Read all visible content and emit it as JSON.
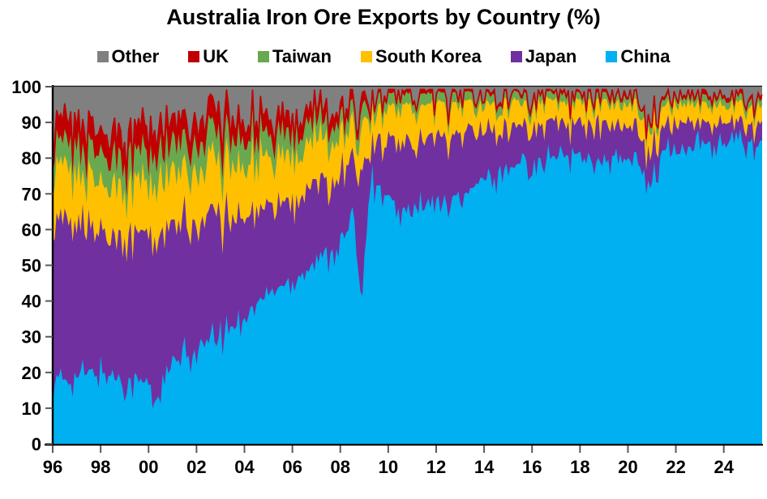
{
  "title": "Australia Iron Ore Exports by Country (%)",
  "chart_data": {
    "type": "area",
    "stacked": true,
    "title": "Australia Iron Ore Exports by Country (%)",
    "xlabel": "",
    "ylabel": "",
    "ylim": [
      0,
      100
    ],
    "xlim": [
      1996,
      2025.6
    ],
    "grid": false,
    "legend_position": "top",
    "legend_order": [
      "Other",
      "UK",
      "Taiwan",
      "South Korea",
      "Japan",
      "China"
    ],
    "y_ticks": [
      0,
      10,
      20,
      30,
      40,
      50,
      60,
      70,
      80,
      90,
      100
    ],
    "x_tick_labels": [
      "96",
      "98",
      "00",
      "02",
      "04",
      "06",
      "08",
      "10",
      "12",
      "14",
      "16",
      "18",
      "20",
      "22",
      "24"
    ],
    "x_tick_years": [
      1996,
      1998,
      2000,
      2002,
      2004,
      2006,
      2008,
      2010,
      2012,
      2014,
      2016,
      2018,
      2020,
      2022,
      2024
    ],
    "x": [
      1996,
      1997,
      1998,
      1999,
      2000,
      2000.2,
      2001,
      2002,
      2003,
      2004,
      2005,
      2006,
      2007,
      2008,
      2008.6,
      2008.9,
      2009.2,
      2009.7,
      2010.5,
      2011,
      2012,
      2013,
      2014,
      2015,
      2016,
      2017,
      2018,
      2019,
      2020,
      2020.6,
      2020.9,
      2021.2,
      2021.4,
      2022,
      2023,
      2024,
      2025,
      2025.6
    ],
    "series": [
      {
        "name": "China",
        "color": "#00B0F0",
        "values": [
          17,
          19,
          20,
          18,
          17,
          11,
          22,
          26,
          30,
          36,
          42,
          46,
          51,
          56,
          63,
          39,
          75,
          71,
          65,
          66,
          68,
          70,
          74,
          78,
          80,
          81,
          81,
          80,
          79,
          78,
          73,
          74,
          82,
          82,
          84,
          84,
          85,
          84
        ]
      },
      {
        "name": "Japan",
        "color": "#7030A0",
        "values": [
          44,
          42,
          40,
          41,
          42,
          47,
          38,
          35,
          33,
          28,
          25,
          23,
          21,
          20,
          17,
          38,
          11,
          15,
          20,
          19,
          18,
          17.5,
          14.5,
          11.5,
          10.5,
          9.8,
          9.5,
          9.5,
          9.2,
          9,
          8,
          8,
          7.5,
          7.5,
          6,
          5.5,
          5,
          5.5
        ]
      },
      {
        "name": "South Korea",
        "color": "#FFC000",
        "values": [
          15,
          14,
          13.5,
          14.5,
          15,
          16,
          15,
          15.5,
          15,
          15,
          14,
          13,
          12,
          10.5,
          9,
          13,
          8,
          8.5,
          9,
          9.5,
          8.5,
          7.5,
          7,
          6.5,
          5.8,
          5.6,
          5.5,
          5.8,
          6,
          6,
          5.5,
          5.5,
          5,
          5.5,
          5,
          5,
          4.5,
          4.5
        ]
      },
      {
        "name": "Taiwan",
        "color": "#6AA84F",
        "values": [
          7,
          7.5,
          7.5,
          8,
          8,
          8,
          8,
          8,
          7.5,
          7,
          6.5,
          6,
          5.5,
          4.5,
          4,
          4.5,
          3,
          3.2,
          3.2,
          3,
          2.8,
          2.6,
          2.5,
          2.2,
          2.1,
          2,
          2,
          2,
          2,
          2,
          1.8,
          1.8,
          1.8,
          1.8,
          2,
          2,
          2,
          2
        ]
      },
      {
        "name": "UK",
        "color": "#C00000",
        "values": [
          6,
          6,
          6.5,
          6,
          6.5,
          6.5,
          6,
          6,
          5.5,
          5,
          4.5,
          4,
          3.5,
          3,
          2.5,
          3,
          1.2,
          1,
          0.8,
          0.8,
          0.7,
          0.7,
          0.6,
          0.6,
          0.6,
          0.6,
          0.6,
          0.7,
          0.8,
          0.8,
          0.7,
          0.7,
          0.7,
          0.7,
          0.8,
          0.8,
          0.8,
          0.8
        ]
      },
      {
        "name": "Other",
        "color": "#808080",
        "values": [
          11,
          11.5,
          12.5,
          12.5,
          11.5,
          11.5,
          11,
          9.5,
          9,
          9,
          8,
          8,
          7,
          6,
          4.5,
          2.5,
          1.8,
          1.3,
          2,
          1.7,
          2,
          1.7,
          1.4,
          1.2,
          1.0,
          1.0,
          1.4,
          2.0,
          3.0,
          4.2,
          11.0,
          10.0,
          3.0,
          2.5,
          2.2,
          2.7,
          2.7,
          3.2
        ]
      }
    ],
    "noise_amplitude": [
      2.4,
      2.0,
      1.7,
      1.2,
      1.2
    ],
    "colors": {
      "axis": "#000000",
      "tick": "#595959",
      "text": "#000000",
      "background": "#ffffff",
      "plot_top_border": "#1a1a1a"
    }
  }
}
